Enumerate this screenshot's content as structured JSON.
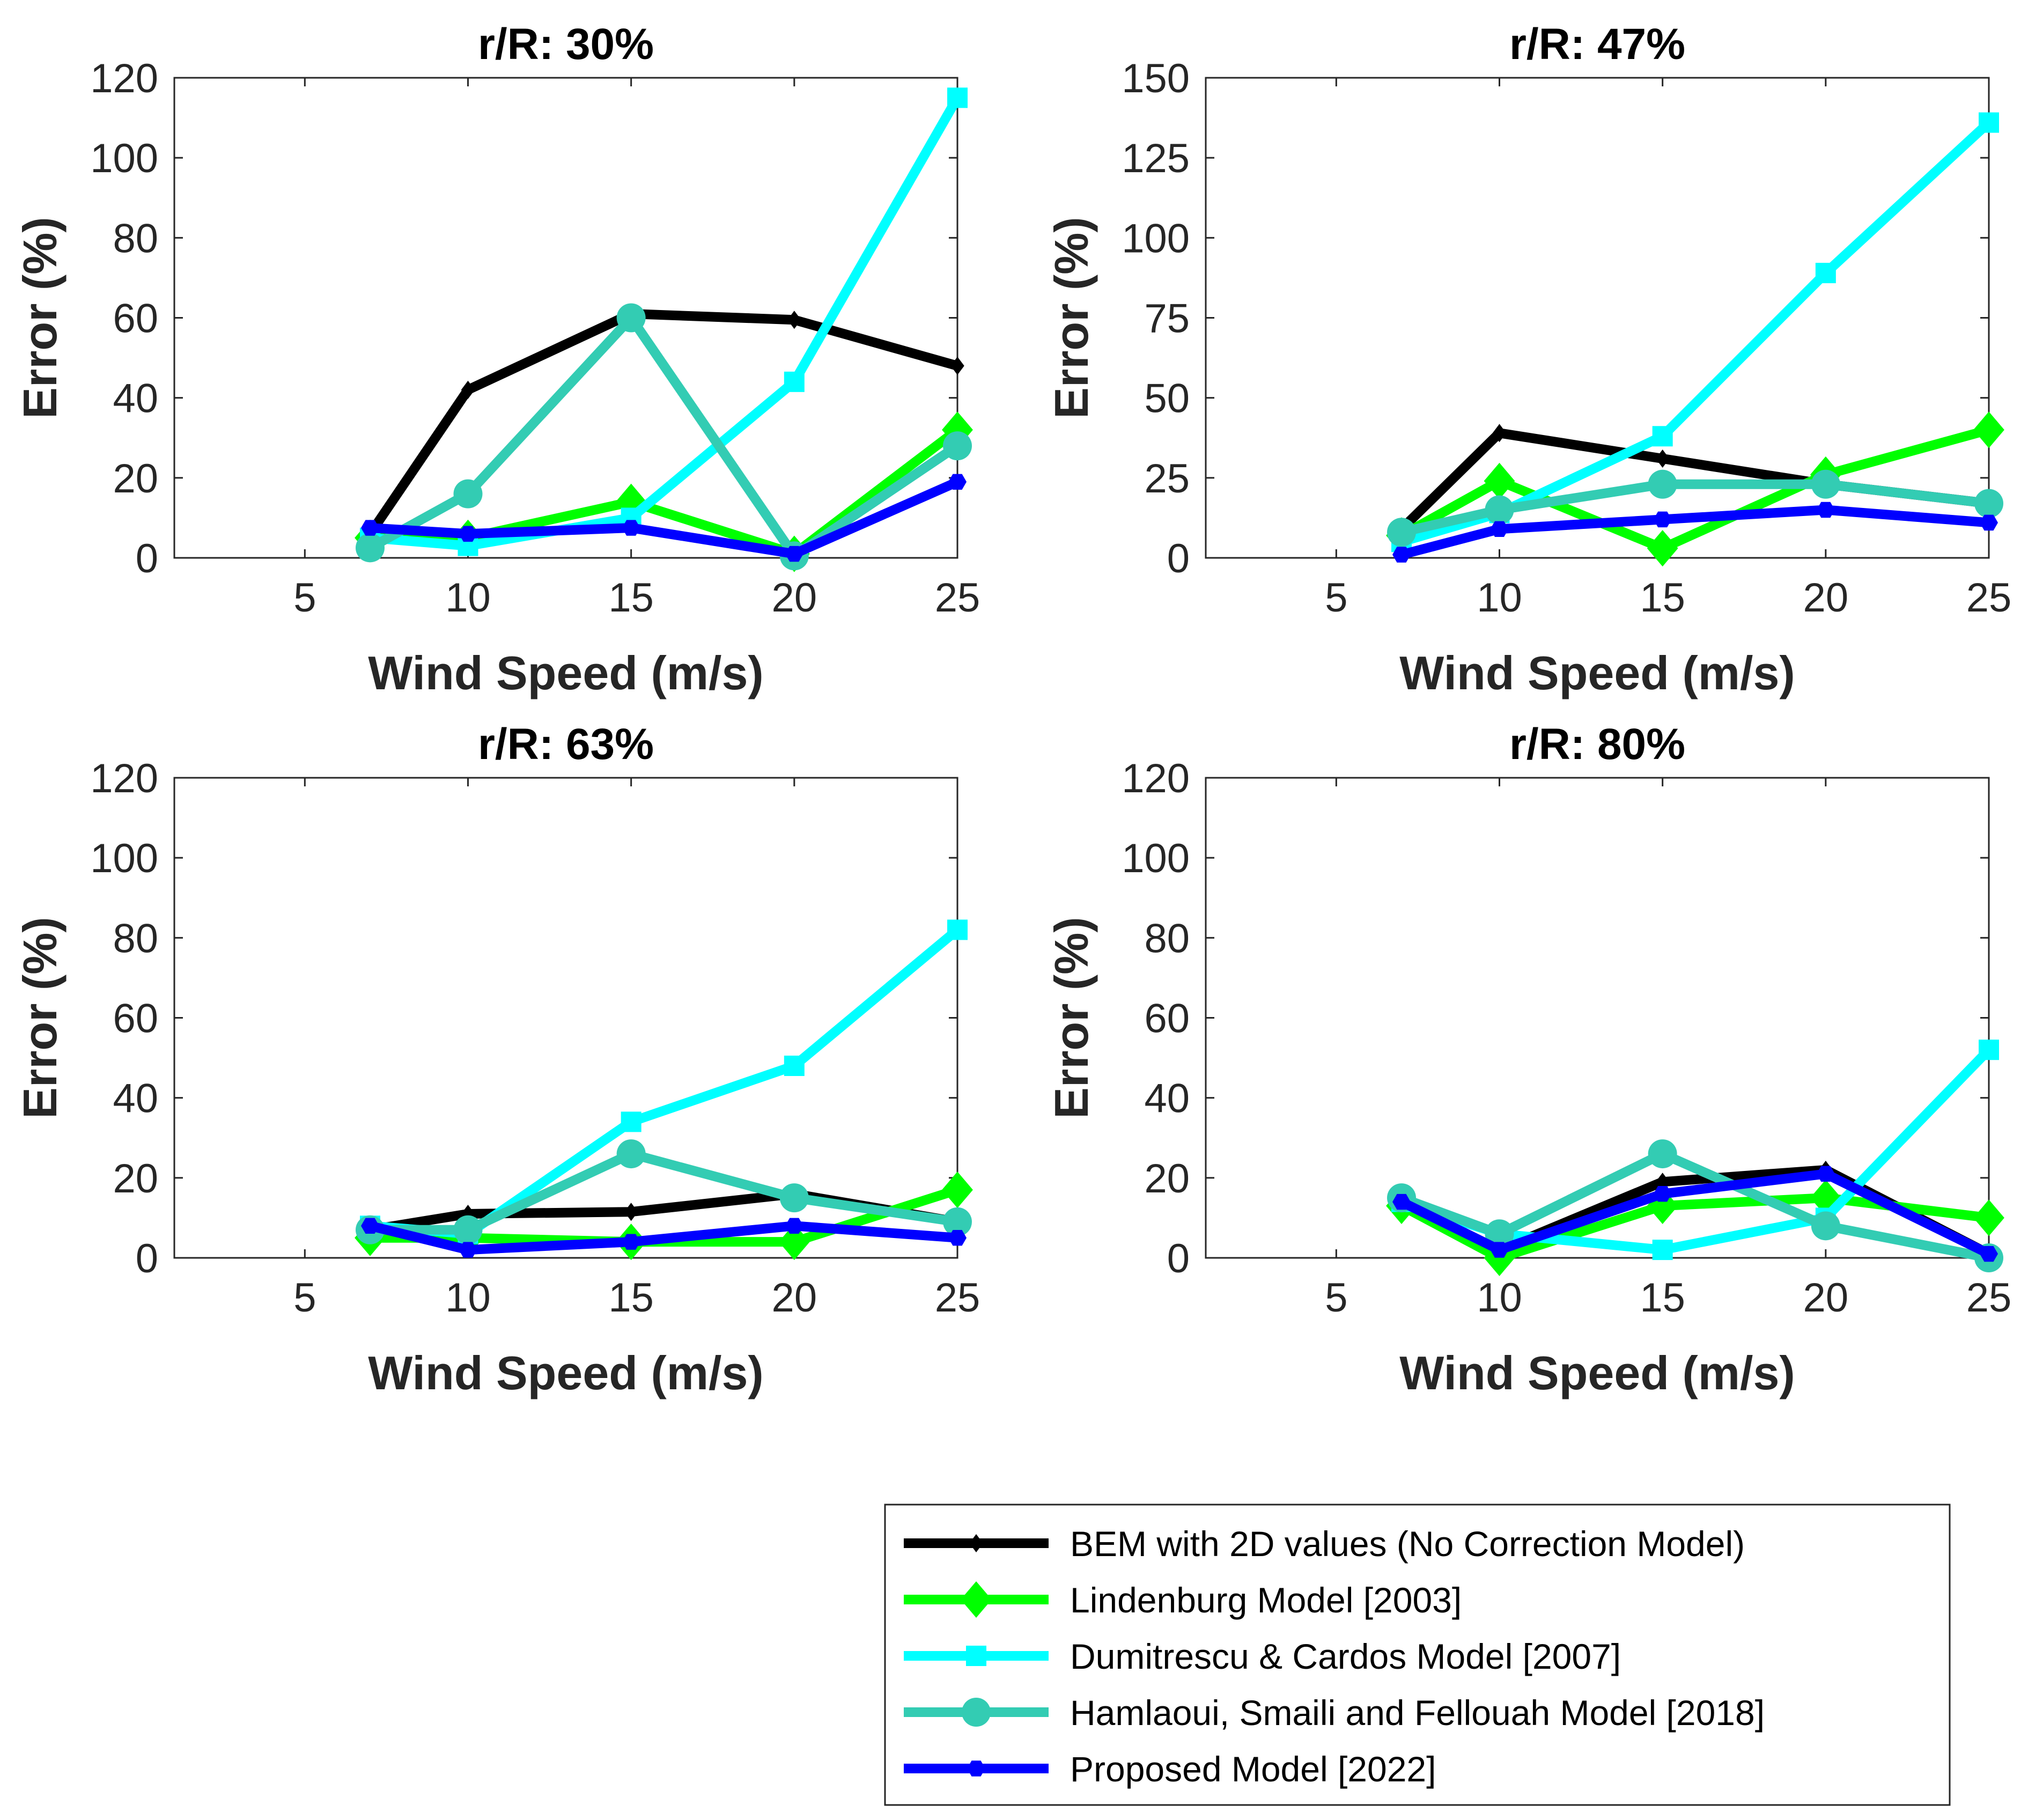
{
  "chart_data": [
    {
      "type": "line",
      "title": "r/R: 30%",
      "xlabel": "Wind Speed (m/s)",
      "ylabel": "Error (%)",
      "xlim": [
        1,
        25
      ],
      "ylim": [
        0,
        120
      ],
      "xticks": [
        5,
        10,
        15,
        20,
        25
      ],
      "yticks": [
        0,
        20,
        40,
        60,
        80,
        100,
        120
      ],
      "x": [
        7,
        10,
        15,
        20,
        25
      ],
      "series": [
        {
          "name": "BEM with 2D values (No Correction Model)",
          "values": [
            6,
            42,
            61,
            59.5,
            48
          ]
        },
        {
          "name": "Lindenburg Model [2003]",
          "values": [
            5,
            5,
            14,
            1,
            32
          ]
        },
        {
          "name": "Dumitrescu & Cardos Model [2007]",
          "values": [
            5,
            3,
            10,
            44,
            115
          ]
        },
        {
          "name": "Hamlaoui, Smaili and Fellouah Model  [2018]",
          "values": [
            2.5,
            16,
            60,
            0.5,
            28
          ]
        },
        {
          "name": "Proposed Model [2022]",
          "values": [
            7.5,
            6,
            7.5,
            1,
            19
          ]
        }
      ]
    },
    {
      "type": "line",
      "title": "r/R: 47%",
      "xlabel": "Wind Speed (m/s)",
      "ylabel": "Error (%)",
      "xlim": [
        1,
        25
      ],
      "ylim": [
        0,
        150
      ],
      "xticks": [
        5,
        10,
        15,
        20,
        25
      ],
      "yticks": [
        0,
        25,
        50,
        75,
        100,
        125,
        150
      ],
      "x": [
        7,
        10,
        15,
        20,
        25
      ],
      "series": [
        {
          "name": "BEM with 2D values (No Correction Model)",
          "values": [
            9,
            39,
            31,
            23,
            17
          ]
        },
        {
          "name": "Lindenburg Model [2003]",
          "values": [
            7,
            24,
            3,
            26,
            40
          ]
        },
        {
          "name": "Dumitrescu & Cardos Model [2007]",
          "values": [
            5,
            14,
            38,
            89,
            136
          ]
        },
        {
          "name": "Hamlaoui, Smaili and Fellouah Model  [2018]",
          "values": [
            8,
            15,
            23,
            23,
            17
          ]
        },
        {
          "name": "Proposed Model [2022]",
          "values": [
            1,
            9,
            12,
            15,
            11
          ]
        }
      ]
    },
    {
      "type": "line",
      "title": "r/R: 63%",
      "xlabel": "Wind Speed (m/s)",
      "ylabel": "Error (%)",
      "xlim": [
        1,
        25
      ],
      "ylim": [
        0,
        120
      ],
      "xticks": [
        5,
        10,
        15,
        20,
        25
      ],
      "yticks": [
        0,
        20,
        40,
        60,
        80,
        100,
        120
      ],
      "x": [
        7,
        10,
        15,
        20,
        25
      ],
      "series": [
        {
          "name": "BEM with 2D values (No Correction Model)",
          "values": [
            7,
            11,
            11.5,
            16,
            9
          ]
        },
        {
          "name": "Lindenburg Model [2003]",
          "values": [
            5,
            5,
            4,
            4,
            17
          ]
        },
        {
          "name": "Dumitrescu & Cardos Model [2007]",
          "values": [
            8,
            6,
            34,
            48,
            82
          ]
        },
        {
          "name": "Hamlaoui, Smaili and Fellouah Model  [2018]",
          "values": [
            7,
            7,
            26,
            15,
            9
          ]
        },
        {
          "name": "Proposed Model [2022]",
          "values": [
            8,
            2,
            4,
            8,
            5
          ]
        }
      ]
    },
    {
      "type": "line",
      "title": "r/R: 80%",
      "xlabel": "Wind Speed (m/s)",
      "ylabel": "Error (%)",
      "xlim": [
        1,
        25
      ],
      "ylim": [
        0,
        120
      ],
      "xticks": [
        5,
        10,
        15,
        20,
        25
      ],
      "yticks": [
        0,
        20,
        40,
        60,
        80,
        100,
        120
      ],
      "x": [
        7,
        10,
        15,
        20,
        25
      ],
      "series": [
        {
          "name": "BEM with 2D values (No Correction Model)",
          "values": [
            14,
            2,
            19,
            22,
            1
          ]
        },
        {
          "name": "Lindenburg Model [2003]",
          "values": [
            13,
            0,
            13,
            15,
            10
          ]
        },
        {
          "name": "Dumitrescu & Cardos Model [2007]",
          "values": [
            14,
            6,
            2,
            10,
            52
          ]
        },
        {
          "name": "Hamlaoui, Smaili and Fellouah Model  [2018]",
          "values": [
            15,
            6,
            26,
            8,
            0
          ]
        },
        {
          "name": "Proposed Model [2022]",
          "values": [
            14,
            2,
            16,
            21,
            1
          ]
        }
      ]
    }
  ],
  "legend": {
    "position": "bottom-right",
    "items": [
      {
        "label": "BEM with 2D values (No Correction Model)",
        "color": "#000000",
        "marker": "diamond-small"
      },
      {
        "label": "Lindenburg Model [2003]",
        "color": "#00ff00",
        "marker": "diamond-large"
      },
      {
        "label": "Dumitrescu & Cardos Model [2007]",
        "color": "#00ffff",
        "marker": "square"
      },
      {
        "label": "Hamlaoui, Smaili and Fellouah Model  [2018]",
        "color": "#33ccb3",
        "marker": "circle"
      },
      {
        "label": "Proposed Model [2022]",
        "color": "#0000ff",
        "marker": "hexagon"
      }
    ]
  }
}
